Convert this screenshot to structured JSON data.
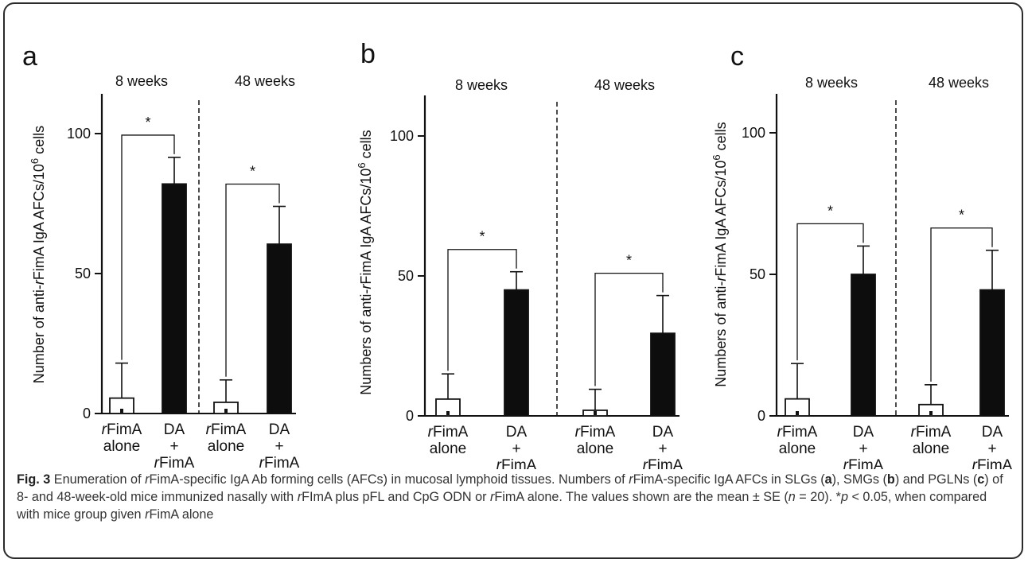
{
  "chart_data": [
    {
      "type": "bar",
      "panel_label": "a",
      "ylabel": "Number of anti-rFimA IgA AFCs/10^6 cells",
      "ylabel_parts": [
        "Number of anti-",
        "r",
        "FimA IgA AFCs/10",
        "6",
        " cells"
      ],
      "ylim": [
        0,
        100
      ],
      "yticks": [
        0,
        50,
        100
      ],
      "groups": [
        {
          "name": "8 weeks",
          "sig": "*",
          "bars": [
            {
              "label_lines": [
                "rFimA",
                "alone"
              ],
              "value": 5.5,
              "error": 12.5,
              "fill": "white"
            },
            {
              "label_lines": [
                "DA",
                "+",
                "rFimA"
              ],
              "value": 82,
              "error": 9.5,
              "fill": "black"
            }
          ]
        },
        {
          "name": "48 weeks",
          "sig": "*",
          "bars": [
            {
              "label_lines": [
                "rFimA",
                "alone"
              ],
              "value": 4,
              "error": 8,
              "fill": "white"
            },
            {
              "label_lines": [
                "DA",
                "+",
                "rFimA"
              ],
              "value": 60.5,
              "error": 13.5,
              "fill": "black"
            }
          ]
        }
      ]
    },
    {
      "type": "bar",
      "panel_label": "b",
      "ylabel": "Numbers of anti-rFimA IgA AFCs/10^6 cells",
      "ylabel_parts": [
        "Numbers of anti-",
        "r",
        "FimA IgA AFCs/10",
        "6",
        " cells"
      ],
      "ylim": [
        0,
        100
      ],
      "yticks": [
        0,
        50,
        100
      ],
      "groups": [
        {
          "name": "8 weeks",
          "sig": "*",
          "bars": [
            {
              "label_lines": [
                "rFimA",
                "alone"
              ],
              "value": 6,
              "error": 9,
              "fill": "white"
            },
            {
              "label_lines": [
                "DA",
                "+",
                "rFimA"
              ],
              "value": 45,
              "error": 6.5,
              "fill": "black"
            }
          ]
        },
        {
          "name": "48 weeks",
          "sig": "*",
          "bars": [
            {
              "label_lines": [
                "rFimA",
                "alone"
              ],
              "value": 2,
              "error": 7.5,
              "fill": "white"
            },
            {
              "label_lines": [
                "DA",
                "+",
                "rFimA"
              ],
              "value": 29.5,
              "error": 13.5,
              "fill": "black"
            }
          ]
        }
      ]
    },
    {
      "type": "bar",
      "panel_label": "c",
      "ylabel": "Numbers of anti-rFimA IgA AFCs/10^6 cells",
      "ylabel_parts": [
        "Numbers of anti-",
        "r",
        "FimA IgA AFCs/10",
        "6",
        " cells"
      ],
      "ylim": [
        0,
        100
      ],
      "yticks": [
        0,
        50,
        100
      ],
      "groups": [
        {
          "name": "8 weeks",
          "sig": "*",
          "bars": [
            {
              "label_lines": [
                "rFimA",
                "alone"
              ],
              "value": 6,
              "error": 12.5,
              "fill": "white"
            },
            {
              "label_lines": [
                "DA",
                "+",
                "rFimA"
              ],
              "value": 50,
              "error": 10,
              "fill": "black"
            }
          ]
        },
        {
          "name": "48 weeks",
          "sig": "*",
          "bars": [
            {
              "label_lines": [
                "rFimA",
                "alone"
              ],
              "value": 4,
              "error": 7,
              "fill": "white"
            },
            {
              "label_lines": [
                "DA",
                "+",
                "rFimA"
              ],
              "value": 44.5,
              "error": 14,
              "fill": "black"
            }
          ]
        }
      ]
    }
  ],
  "caption": {
    "fig_label": "Fig. 3",
    "text": "Enumeration of rFimA-specific IgA Ab forming cells (AFCs) in mucosal lymphoid tissues. Numbers of rFimA-specific IgA AFCs in SLGs (a), SMGs (b) and PGLNs (c) of 8- and 48-week-old mice immunized nasally with rFImA plus pFL and CpG ODN or rFimA alone. The values shown are the mean ± SE (n = 20). *p < 0.05, when compared with mice group given rFimA alone",
    "segments": [
      {
        "t": "Enumeration of ",
        "s": ""
      },
      {
        "t": "r",
        "s": "i"
      },
      {
        "t": "FimA-specific IgA Ab forming cells (AFCs) in mucosal lymphoid tissues. Numbers of ",
        "s": ""
      },
      {
        "t": "r",
        "s": "i"
      },
      {
        "t": "FimA-specific IgA AFCs in SLGs (",
        "s": ""
      },
      {
        "t": "a",
        "s": "b"
      },
      {
        "t": "), SMGs (",
        "s": ""
      },
      {
        "t": "b",
        "s": "b"
      },
      {
        "t": ") and PGLNs (",
        "s": ""
      },
      {
        "t": "c",
        "s": "b"
      },
      {
        "t": ") of 8- and 48-week-old mice immunized nasally with ",
        "s": ""
      },
      {
        "t": "r",
        "s": "i"
      },
      {
        "t": "FImA plus pFL and CpG ODN or ",
        "s": ""
      },
      {
        "t": "r",
        "s": "i"
      },
      {
        "t": "FimA alone. The values shown are the mean ± SE (",
        "s": ""
      },
      {
        "t": "n",
        "s": "i"
      },
      {
        "t": " = 20). *",
        "s": ""
      },
      {
        "t": "p",
        "s": "i"
      },
      {
        "t": " < 0.05, when compared with mice group given ",
        "s": ""
      },
      {
        "t": "r",
        "s": "i"
      },
      {
        "t": "FimA alone",
        "s": ""
      }
    ]
  }
}
